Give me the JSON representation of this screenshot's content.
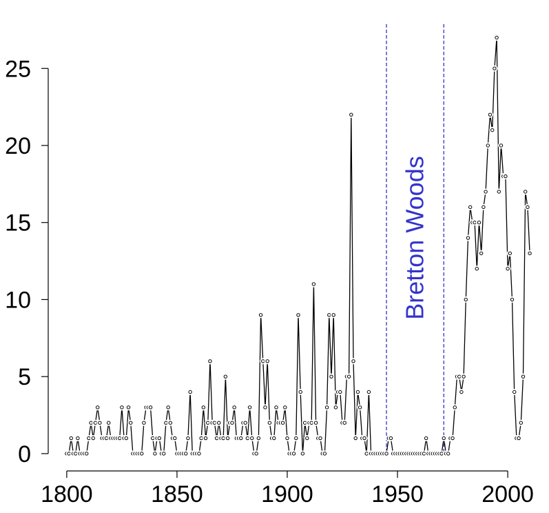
{
  "chart_data": {
    "type": "line",
    "x": [
      1800,
      1801,
      1802,
      1803,
      1804,
      1805,
      1806,
      1807,
      1808,
      1809,
      1810,
      1811,
      1812,
      1813,
      1814,
      1815,
      1816,
      1817,
      1818,
      1819,
      1820,
      1821,
      1822,
      1823,
      1824,
      1825,
      1826,
      1827,
      1828,
      1829,
      1830,
      1831,
      1832,
      1833,
      1834,
      1835,
      1836,
      1837,
      1838,
      1839,
      1840,
      1841,
      1842,
      1843,
      1844,
      1845,
      1846,
      1847,
      1848,
      1849,
      1850,
      1851,
      1852,
      1853,
      1854,
      1855,
      1856,
      1857,
      1858,
      1859,
      1860,
      1861,
      1862,
      1863,
      1864,
      1865,
      1866,
      1867,
      1868,
      1869,
      1870,
      1871,
      1872,
      1873,
      1874,
      1875,
      1876,
      1877,
      1878,
      1879,
      1880,
      1881,
      1882,
      1883,
      1884,
      1885,
      1886,
      1887,
      1888,
      1889,
      1890,
      1891,
      1892,
      1893,
      1894,
      1895,
      1896,
      1897,
      1898,
      1899,
      1900,
      1901,
      1902,
      1903,
      1904,
      1905,
      1906,
      1907,
      1908,
      1909,
      1910,
      1911,
      1912,
      1913,
      1914,
      1915,
      1916,
      1917,
      1918,
      1919,
      1920,
      1921,
      1922,
      1923,
      1924,
      1925,
      1926,
      1927,
      1928,
      1929,
      1930,
      1931,
      1932,
      1933,
      1934,
      1935,
      1936,
      1937,
      1938,
      1939,
      1940,
      1941,
      1942,
      1943,
      1944,
      1945,
      1946,
      1947,
      1948,
      1949,
      1950,
      1951,
      1952,
      1953,
      1954,
      1955,
      1956,
      1957,
      1958,
      1959,
      1960,
      1961,
      1962,
      1963,
      1964,
      1965,
      1966,
      1967,
      1968,
      1969,
      1970,
      1971,
      1972,
      1973,
      1974,
      1975,
      1976,
      1977,
      1978,
      1979,
      1980,
      1981,
      1982,
      1983,
      1984,
      1985,
      1986,
      1987,
      1988,
      1989,
      1990,
      1991,
      1992,
      1993,
      1994,
      1995,
      1996,
      1997,
      1998,
      1999,
      2000,
      2001,
      2002,
      2003,
      2004,
      2005,
      2006,
      2007,
      2008,
      2009,
      2010
    ],
    "values": [
      0,
      0,
      1,
      0,
      0,
      1,
      0,
      0,
      0,
      0,
      1,
      2,
      1,
      2,
      3,
      2,
      1,
      1,
      1,
      2,
      1,
      1,
      1,
      1,
      1,
      3,
      1,
      1,
      3,
      2,
      0,
      0,
      0,
      0,
      0,
      2,
      3,
      3,
      3,
      1,
      0,
      1,
      1,
      0,
      0,
      2,
      3,
      2,
      1,
      1,
      0,
      0,
      0,
      0,
      0,
      1,
      4,
      0,
      0,
      0,
      0,
      1,
      3,
      1,
      2,
      6,
      2,
      2,
      1,
      2,
      1,
      1,
      5,
      1,
      2,
      2,
      3,
      1,
      1,
      1,
      2,
      2,
      1,
      3,
      1,
      0,
      0,
      1,
      9,
      6,
      3,
      6,
      2,
      1,
      1,
      3,
      2,
      2,
      2,
      3,
      1,
      0,
      0,
      0,
      1,
      9,
      4,
      0,
      2,
      1,
      2,
      2,
      11,
      2,
      1,
      1,
      0,
      0,
      3,
      9,
      5,
      9,
      3,
      4,
      4,
      2,
      2,
      5,
      5,
      22,
      6,
      1,
      4,
      3,
      1,
      1,
      0,
      4,
      0,
      0,
      0,
      0,
      0,
      0,
      0,
      0,
      1,
      1,
      0,
      0,
      0,
      0,
      0,
      0,
      0,
      0,
      0,
      0,
      0,
      0,
      0,
      0,
      0,
      1,
      0,
      0,
      0,
      0,
      0,
      0,
      0,
      1,
      0,
      0,
      1,
      1,
      3,
      5,
      5,
      4,
      5,
      10,
      14,
      16,
      15,
      15,
      12,
      15,
      13,
      16,
      17,
      20,
      22,
      21,
      25,
      27,
      17,
      20,
      18,
      18,
      12,
      13,
      10,
      4,
      1,
      1,
      2,
      5,
      17,
      16,
      13
    ],
    "color": "#000000",
    "xlim": [
      1791.6,
      2018.4
    ],
    "xticks": [
      1800,
      1850,
      1900,
      1950,
      2000
    ],
    "ylim": [
      -0.99,
      28.1
    ],
    "yticks": [
      0,
      5,
      10,
      15,
      20,
      25
    ],
    "vlines": [
      1945,
      1971
    ],
    "vline_color": "#3333cc",
    "annotation": "Bretton Woods"
  }
}
